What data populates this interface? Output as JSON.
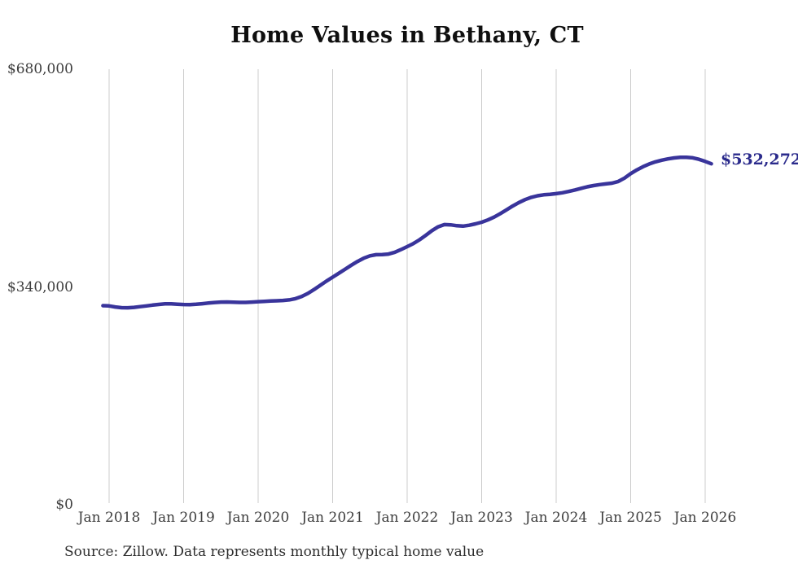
{
  "chart_data": {
    "type": "line",
    "title": "Home Values in Bethany, CT",
    "source": "Source: Zillow. Data represents monthly typical home value",
    "end_label": "$532,272",
    "latest_value": 532272,
    "xlabel": "",
    "ylabel": "",
    "ylim": [
      0,
      680000
    ],
    "grid": "vertical-only",
    "legend": "none",
    "y_ticks": [
      {
        "label": "$680,000",
        "value": 680000
      },
      {
        "label": "$340,000",
        "value": 340000
      },
      {
        "label": "$0",
        "value": 0
      }
    ],
    "x_tick_labels": [
      "Jan 2018",
      "Jan 2019",
      "Jan 2020",
      "Jan 2021",
      "Jan 2022",
      "Jan 2023",
      "Jan 2024",
      "Jan 2025",
      "Jan 2026"
    ],
    "series": [
      {
        "name": "Typical home value",
        "frequency": "monthly",
        "x": [
          "2017-12",
          "2018-01",
          "2018-02",
          "2018-03",
          "2018-04",
          "2018-05",
          "2018-06",
          "2018-07",
          "2018-08",
          "2018-09",
          "2018-10",
          "2018-11",
          "2018-12",
          "2019-01",
          "2019-02",
          "2019-03",
          "2019-04",
          "2019-05",
          "2019-06",
          "2019-07",
          "2019-08",
          "2019-09",
          "2019-10",
          "2019-11",
          "2019-12",
          "2020-01",
          "2020-02",
          "2020-03",
          "2020-04",
          "2020-05",
          "2020-06",
          "2020-07",
          "2020-08",
          "2020-09",
          "2020-10",
          "2020-11",
          "2020-12",
          "2021-01",
          "2021-02",
          "2021-03",
          "2021-04",
          "2021-05",
          "2021-06",
          "2021-07",
          "2021-08",
          "2021-09",
          "2021-10",
          "2021-11",
          "2021-12",
          "2022-01",
          "2022-02",
          "2022-03",
          "2022-04",
          "2022-05",
          "2022-06",
          "2022-07",
          "2022-08",
          "2022-09",
          "2022-10",
          "2022-11",
          "2022-12",
          "2023-01",
          "2023-02",
          "2023-03",
          "2023-04",
          "2023-05",
          "2023-06",
          "2023-07",
          "2023-08",
          "2023-09",
          "2023-10",
          "2023-11",
          "2023-12",
          "2024-01",
          "2024-02",
          "2024-03",
          "2024-04",
          "2024-05",
          "2024-06",
          "2024-07",
          "2024-08",
          "2024-09",
          "2024-10",
          "2024-11",
          "2024-12",
          "2025-01",
          "2025-02",
          "2025-03",
          "2025-04",
          "2025-05",
          "2025-06",
          "2025-07",
          "2025-08",
          "2025-09",
          "2025-10",
          "2025-11",
          "2025-12",
          "2026-01",
          "2026-02"
        ],
        "values": [
          310800,
          310400,
          308700,
          307600,
          307500,
          308100,
          309200,
          310400,
          311600,
          312700,
          313500,
          313600,
          313100,
          312500,
          312400,
          312900,
          313800,
          314800,
          315700,
          316300,
          316500,
          316200,
          315800,
          315900,
          316400,
          317000,
          317500,
          318000,
          318400,
          318900,
          319800,
          321700,
          325000,
          329800,
          335900,
          342600,
          349100,
          355200,
          361400,
          367700,
          373900,
          379800,
          384900,
          388500,
          390300,
          390500,
          391300,
          394200,
          398400,
          402900,
          407800,
          413700,
          420600,
          427900,
          433900,
          437300,
          437000,
          435600,
          434900,
          436300,
          438500,
          441100,
          444600,
          449100,
          454500,
          460400,
          466300,
          471800,
          476400,
          479900,
          482400,
          483900,
          484700,
          485600,
          487100,
          489100,
          491400,
          493900,
          496300,
          498300,
          499800,
          500900,
          502100,
          504700,
          510000,
          516900,
          522800,
          527900,
          532000,
          535300,
          537900,
          539900,
          541400,
          542300,
          542500,
          541600,
          539300,
          536000,
          532272
        ]
      }
    ],
    "colors": {
      "line": "#39349b",
      "end_label": "#2b2b8c",
      "grid": "#cccccc",
      "axis_text": "#3d3d3d",
      "title": "#0f0f0f",
      "source_text": "#2e2e2e"
    }
  }
}
